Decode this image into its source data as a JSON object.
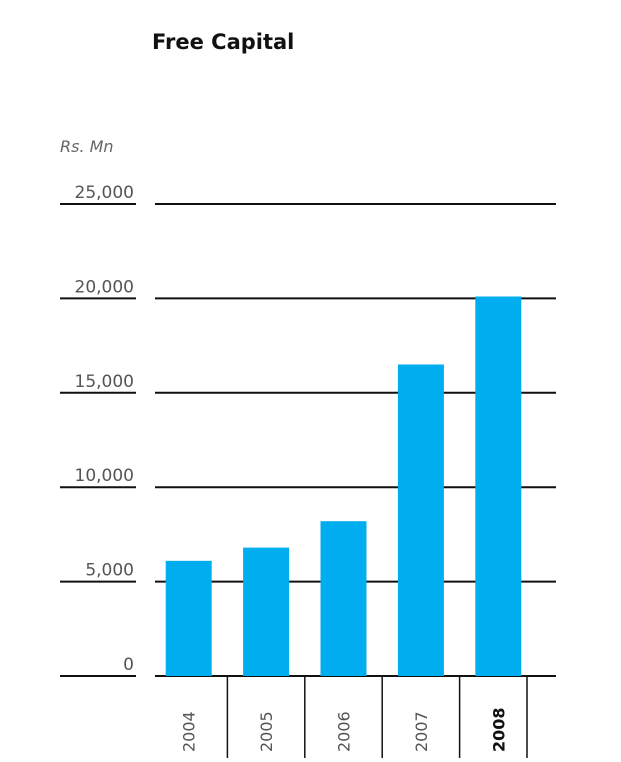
{
  "chart_data": {
    "type": "bar",
    "title": "Free Capital",
    "unit_label": "Rs. Mn",
    "categories": [
      "2004",
      "2005",
      "2006",
      "2007",
      "2008"
    ],
    "highlighted_category": "2008",
    "values": [
      6100,
      6800,
      8200,
      16500,
      20100
    ],
    "ylim": [
      0,
      25000
    ],
    "yticks": [
      0,
      5000,
      10000,
      15000,
      20000,
      25000
    ],
    "ytick_labels": [
      "0",
      "5,000",
      "10,000",
      "15,000",
      "20,000",
      "25,000"
    ],
    "bar_color": "#00aeef",
    "grid": true
  }
}
